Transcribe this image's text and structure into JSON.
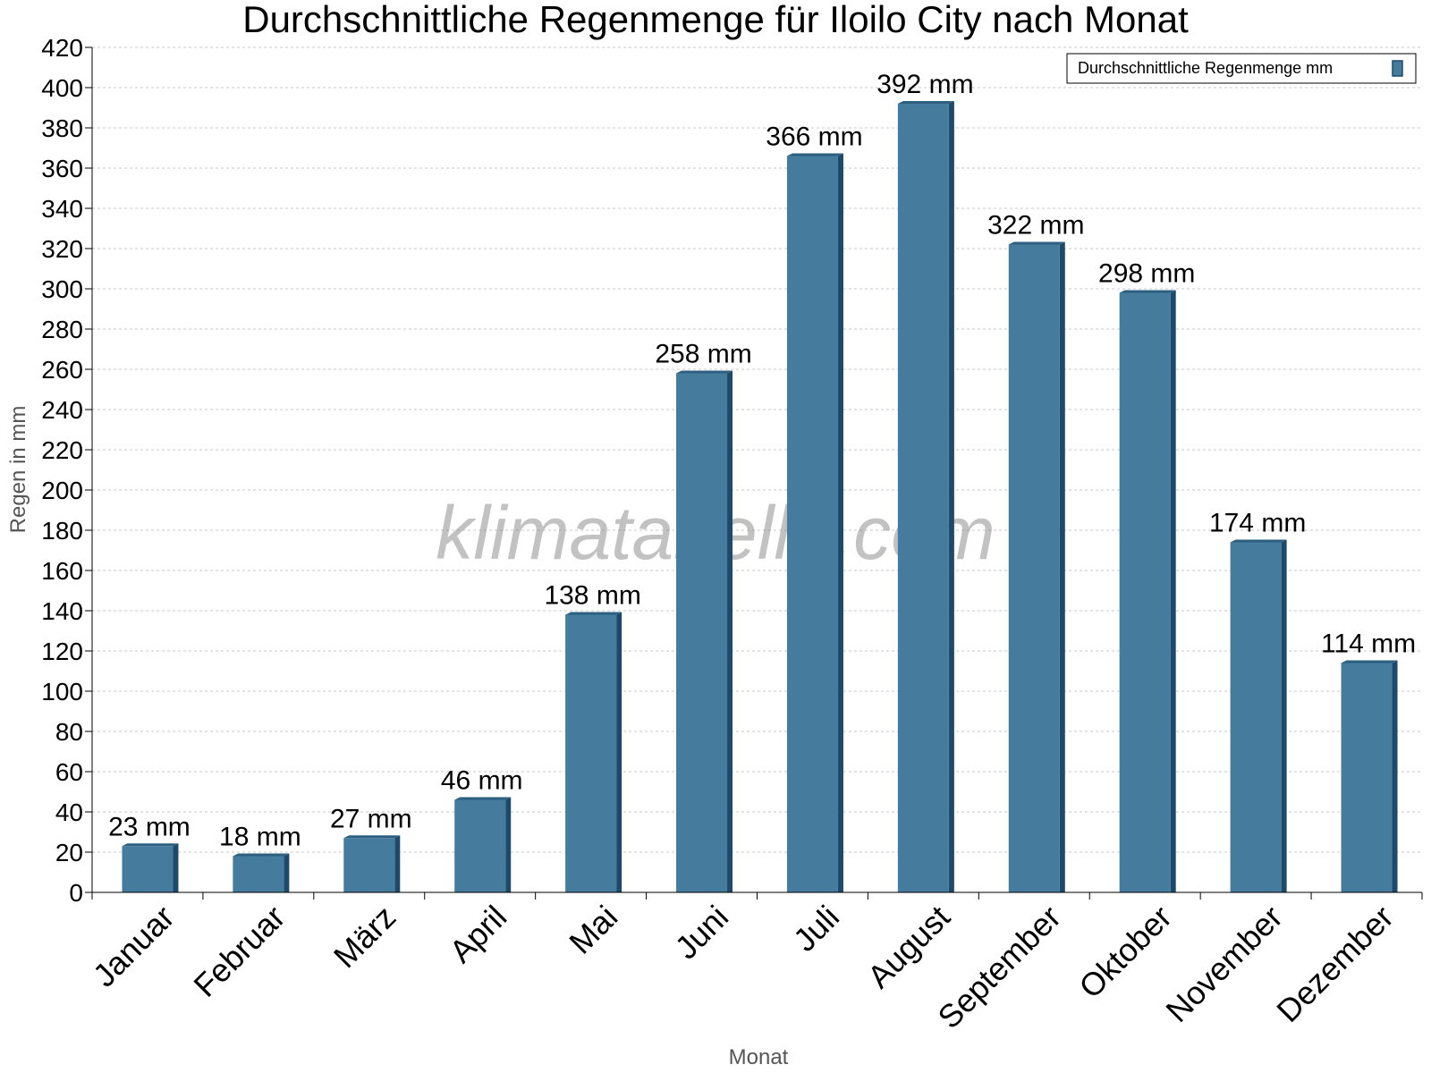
{
  "chart_data": {
    "type": "bar",
    "title": "Durchschnittliche Regenmenge für Iloilo City nach Monat",
    "xlabel": "Monat",
    "ylabel": "Regen in mm",
    "ylim": [
      0,
      420
    ],
    "ytick_step": 20,
    "grid": true,
    "legend_position": "top-right",
    "categories": [
      "Januar",
      "Februar",
      "März",
      "April",
      "Mai",
      "Juni",
      "Juli",
      "August",
      "September",
      "Oktober",
      "November",
      "Dezember"
    ],
    "series": [
      {
        "name": "Durchschnittliche Regenmenge mm",
        "values": [
          23,
          18,
          27,
          46,
          138,
          258,
          366,
          392,
          322,
          298,
          174,
          114
        ],
        "data_labels": [
          "23 mm",
          "18 mm",
          "27 mm",
          "46 mm",
          "138 mm",
          "258 mm",
          "366 mm",
          "392 mm",
          "322 mm",
          "298 mm",
          "174 mm",
          "114 mm"
        ],
        "color": "#457b9d"
      }
    ]
  },
  "watermark": "klimatabelle.com",
  "colors": {
    "bar": "#457b9d",
    "bar_side": "#1d4a6b",
    "bar_top": "#2d5f80",
    "grid": "#c8c8c8"
  }
}
